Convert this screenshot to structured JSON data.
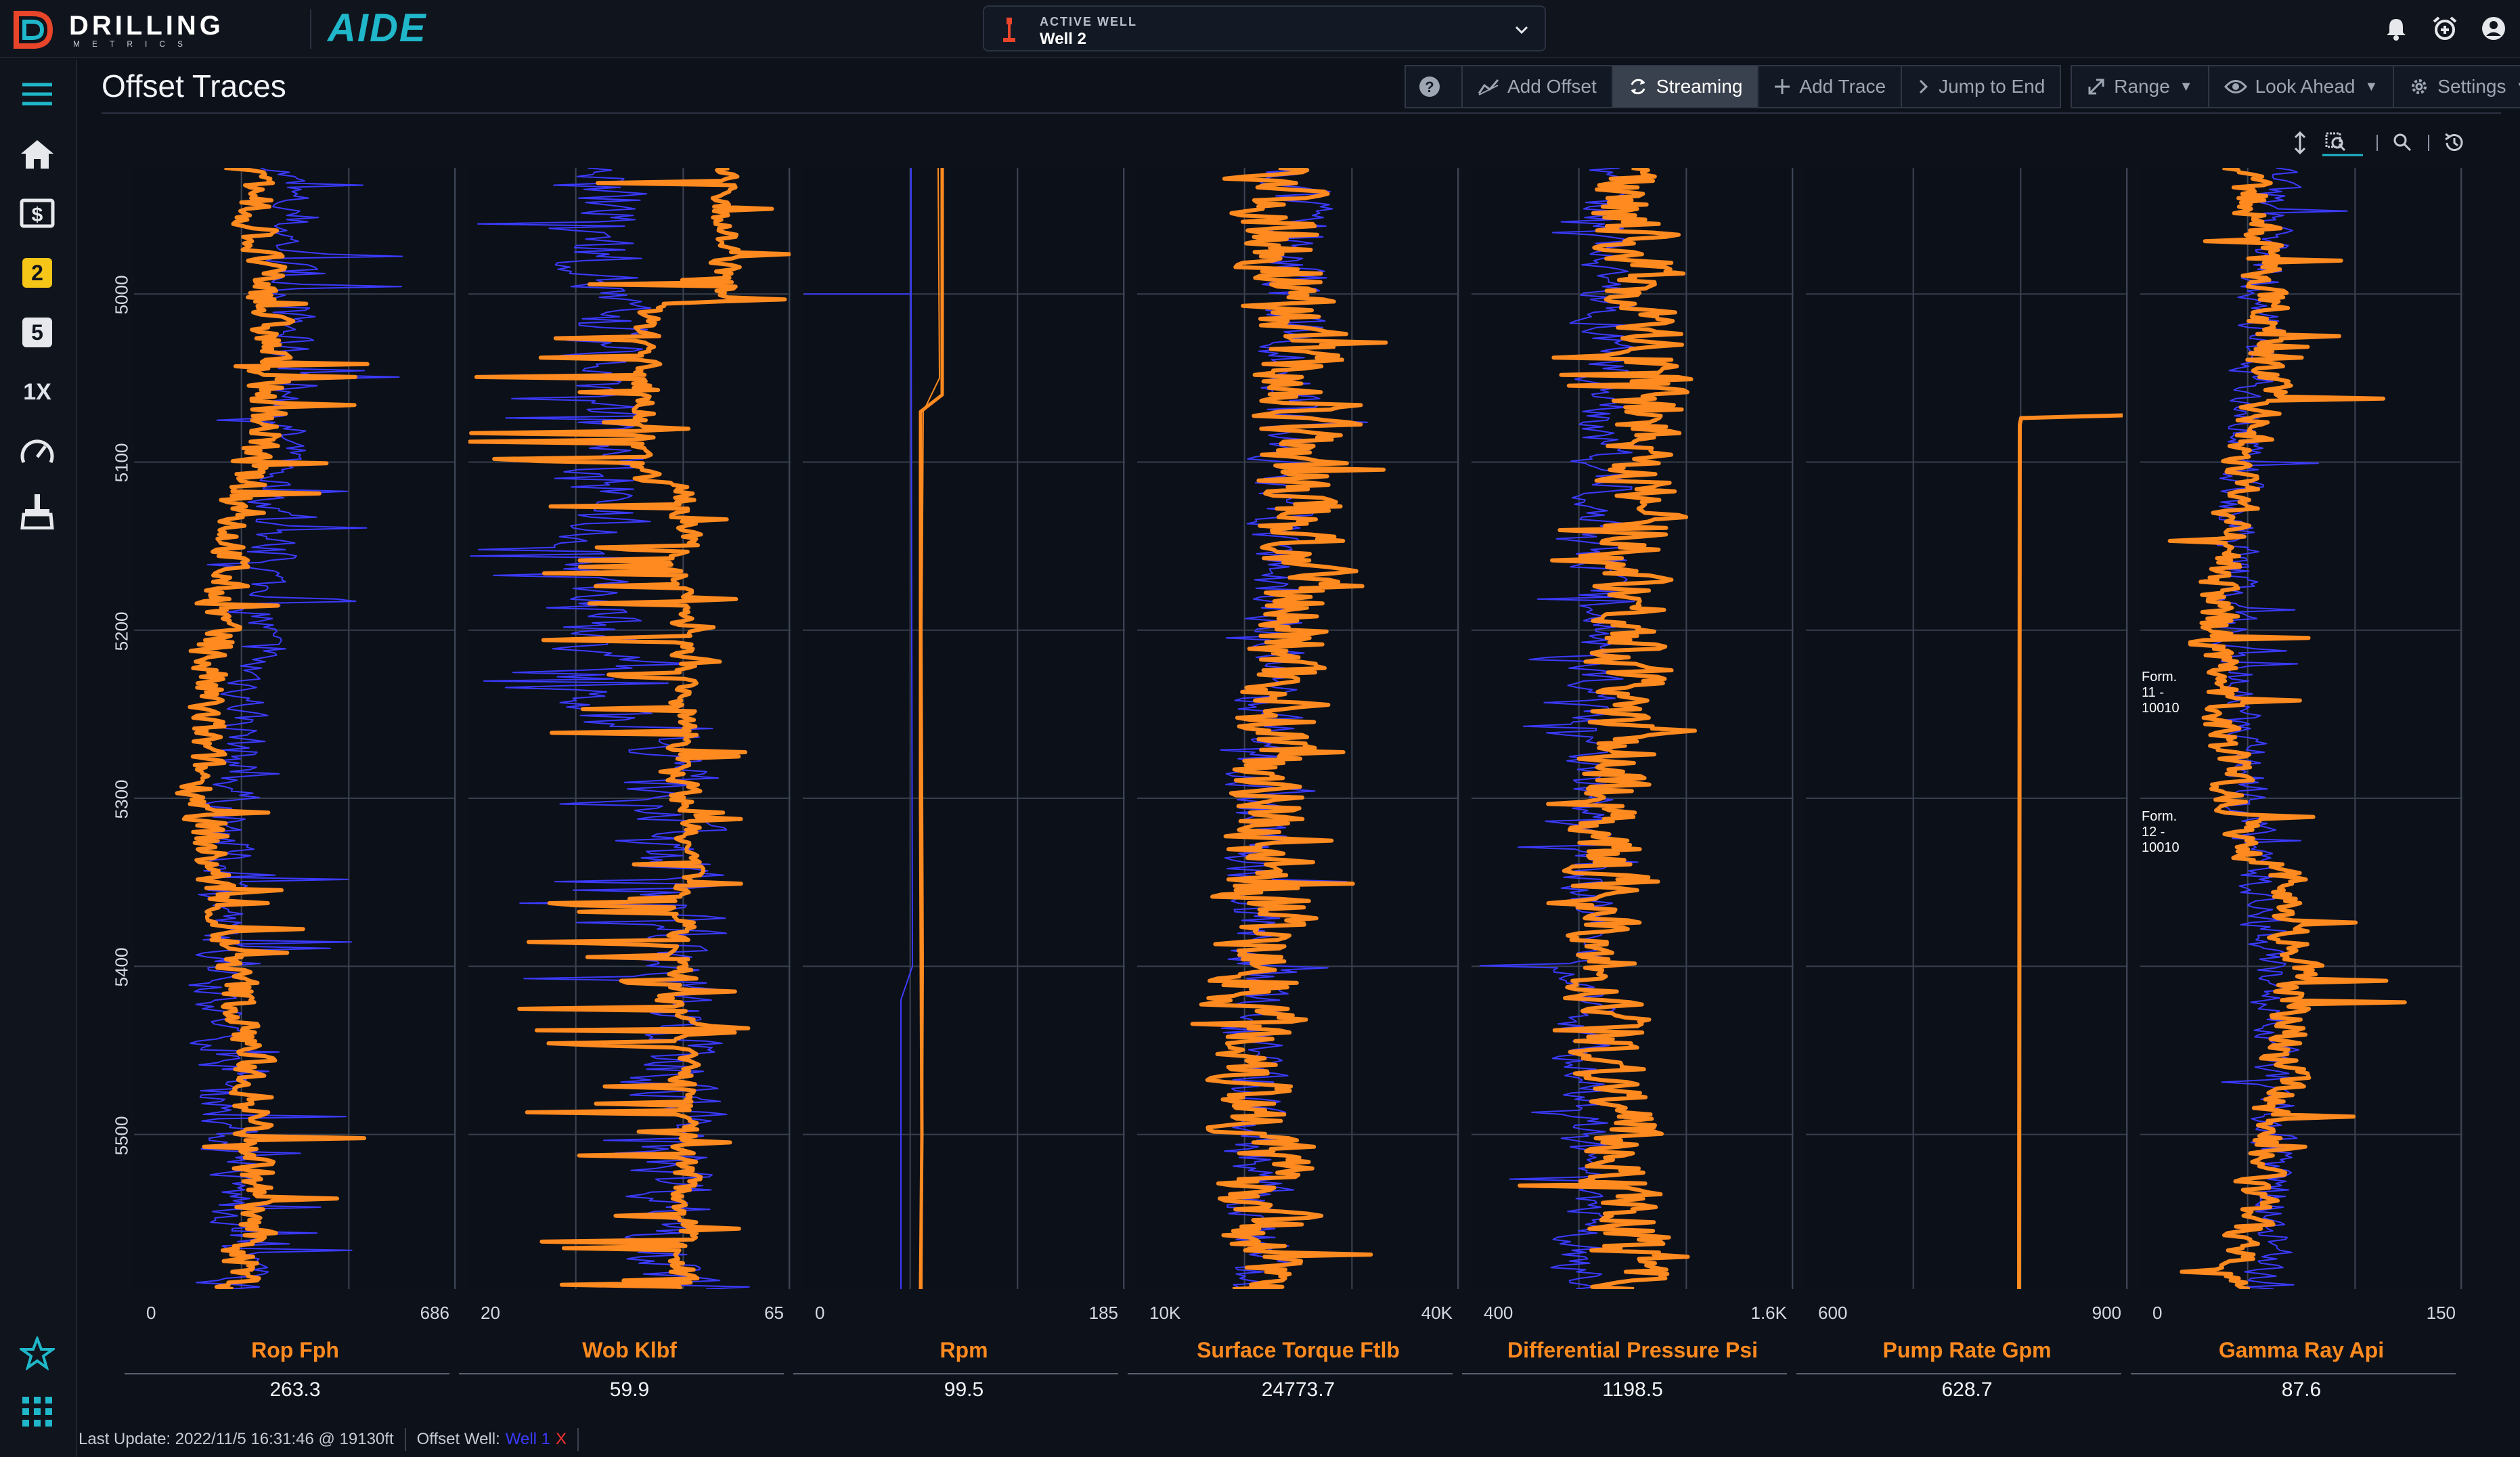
{
  "app": {
    "brand": "DRILLING",
    "brand_sub": "METRICS",
    "product": "AIDE"
  },
  "active_well": {
    "caption": "ACTIVE WELL",
    "name": "Well 2"
  },
  "page": {
    "title": "Offset Traces"
  },
  "toolbar": {
    "add_offset": "Add Offset",
    "streaming": "Streaming",
    "add_trace": "Add Trace",
    "jump_to_end": "Jump to End",
    "range": "Range",
    "look_ahead": "Look Ahead",
    "settings": "Settings"
  },
  "depth_axis": {
    "ticks": [
      "5000",
      "5100",
      "5200",
      "5300",
      "5400",
      "5500"
    ],
    "start": 4925,
    "end": 5592
  },
  "tracks": [
    {
      "name": "Rop Fph",
      "lo": "0",
      "hi": "686",
      "value": "263.3"
    },
    {
      "name": "Wob Klbf",
      "lo": "20",
      "hi": "65",
      "value": "59.9"
    },
    {
      "name": "Rpm",
      "lo": "0",
      "hi": "185",
      "value": "99.5"
    },
    {
      "name": "Surface Torque Ftlb",
      "lo": "10K",
      "hi": "40K",
      "value": "24773.7"
    },
    {
      "name": "Differential Pressure Psi",
      "lo": "400",
      "hi": "1.6K",
      "value": "1198.5"
    },
    {
      "name": "Pump Rate Gpm",
      "lo": "600",
      "hi": "900",
      "value": "628.7"
    },
    {
      "name": "Gamma Ray Api",
      "lo": "0",
      "hi": "150",
      "value": "87.6"
    }
  ],
  "formations": [
    {
      "label": "Form. 11 - 10010",
      "depth": 5230
    },
    {
      "label": "Form. 12 - 10010",
      "depth": 5313
    }
  ],
  "status": {
    "last_update": "Last Update: 2022/11/5 16:31:46 @ 19130ft",
    "offset_label": "Offset Well:",
    "offset_well": "Well 1",
    "remove": "X"
  },
  "colors": {
    "primary_trace": "#ff8a1f",
    "offset_trace": "#3b3bff",
    "accent_teal": "#1fb7c9",
    "badge_yellow": "#f5c518"
  },
  "sidebar": {
    "badges": [
      "2",
      "5"
    ],
    "speed": "1X"
  }
}
